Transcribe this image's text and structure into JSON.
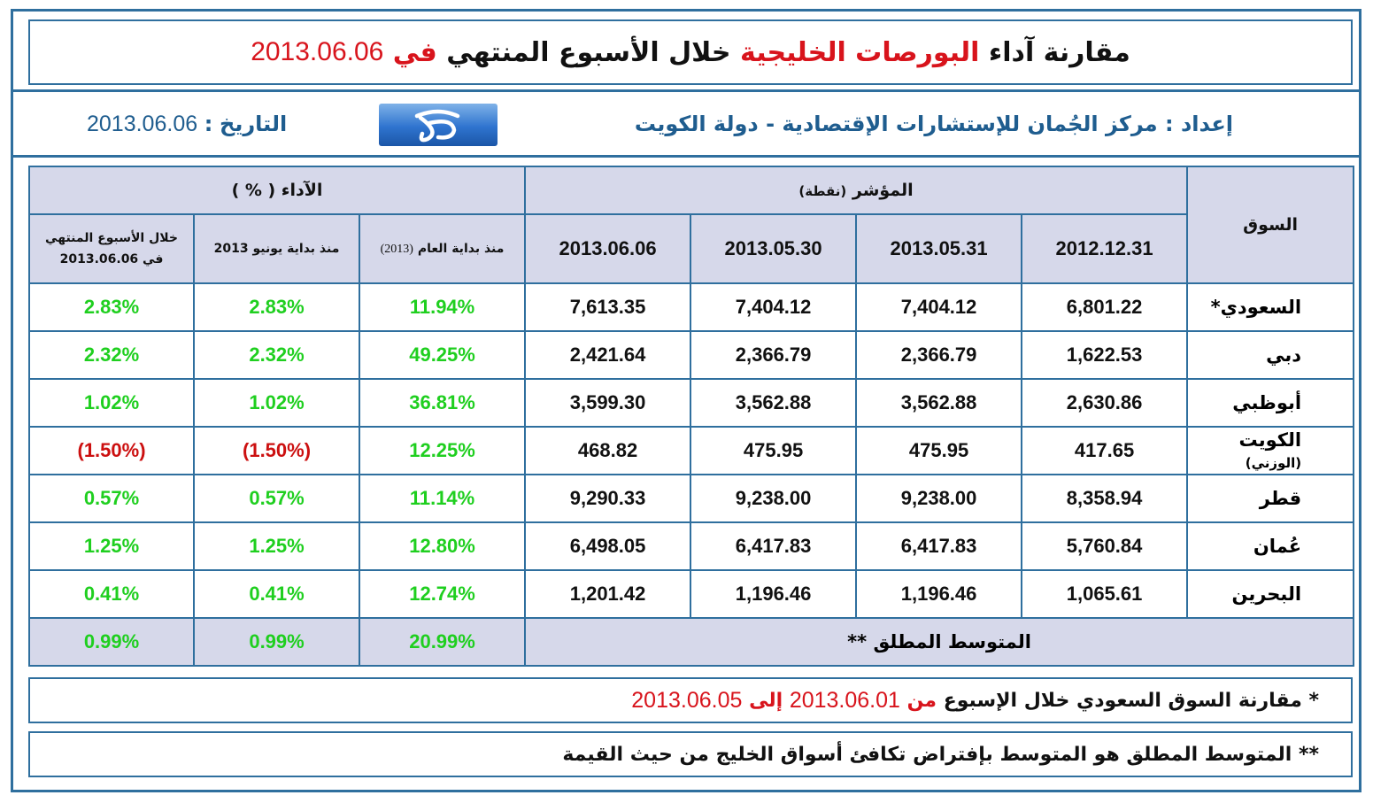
{
  "title": {
    "part1": "مقارنة آداء",
    "part2": "البورصات الخليجية",
    "part3": "خلال الأسبوع المنتهي",
    "part4": "في",
    "date": "2013.06.06"
  },
  "info": {
    "prepared_label": "إعداد",
    "prepared_sep": ":",
    "prepared_value": "مركز الجُمان للإستشارات الإقتصادية - دولة الكويت",
    "date_label": "التاريخ",
    "date_sep": ":",
    "date_value": "2013.06.06"
  },
  "table": {
    "market_header": "السوق",
    "index_header": "المؤشر",
    "index_unit": "(نقطة)",
    "perf_header": "الآداء ( % )",
    "date_cols": [
      "2012.12.31",
      "2013.05.31",
      "2013.05.30",
      "2013.06.06"
    ],
    "perf_cols": {
      "ytd": "منذ بداية العام",
      "ytd_year": "(2013)",
      "june": "منذ بداية يونيو 2013",
      "week_line1": "خلال الأسبوع المنتهي",
      "week_line2": "في 2013.06.06"
    },
    "rows": [
      {
        "market": "السعودي*",
        "m_suffix": "",
        "d1": "6,801.22",
        "d2": "7,404.12",
        "d3": "7,404.12",
        "d4": "7,613.35",
        "ytd": "11.94%",
        "june": "2.83%",
        "week": "2.83%",
        "neg": false
      },
      {
        "market": "دبي",
        "m_suffix": "",
        "d1": "1,622.53",
        "d2": "2,366.79",
        "d3": "2,366.79",
        "d4": "2,421.64",
        "ytd": "49.25%",
        "june": "2.32%",
        "week": "2.32%",
        "neg": false
      },
      {
        "market": "أبوظبي",
        "m_suffix": "",
        "d1": "2,630.86",
        "d2": "3,562.88",
        "d3": "3,562.88",
        "d4": "3,599.30",
        "ytd": "36.81%",
        "june": "1.02%",
        "week": "1.02%",
        "neg": false
      },
      {
        "market": "الكويت",
        "m_suffix": "(الوزني)",
        "d1": "417.65",
        "d2": "475.95",
        "d3": "475.95",
        "d4": "468.82",
        "ytd": "12.25%",
        "june": "(1.50%)",
        "week": "(1.50%)",
        "neg": true
      },
      {
        "market": "قطر",
        "m_suffix": "",
        "d1": "8,358.94",
        "d2": "9,238.00",
        "d3": "9,238.00",
        "d4": "9,290.33",
        "ytd": "11.14%",
        "june": "0.57%",
        "week": "0.57%",
        "neg": false
      },
      {
        "market": "عُمان",
        "m_suffix": "",
        "d1": "5,760.84",
        "d2": "6,417.83",
        "d3": "6,417.83",
        "d4": "6,498.05",
        "ytd": "12.80%",
        "june": "1.25%",
        "week": "1.25%",
        "neg": false
      },
      {
        "market": "البحرين",
        "m_suffix": "",
        "d1": "1,065.61",
        "d2": "1,196.46",
        "d3": "1,196.46",
        "d4": "1,201.42",
        "ytd": "12.74%",
        "june": "0.41%",
        "week": "0.41%",
        "neg": false
      }
    ],
    "average": {
      "label": "المتوسط المطلق **",
      "ytd": "20.99%",
      "june": "0.99%",
      "week": "0.99%"
    }
  },
  "notes": {
    "n1_prefix": "*  مقارنة السوق السعودي خلال الإسبوع",
    "n1_from": "من",
    "n1_date1": "2013.06.01",
    "n1_to": "إلى",
    "n1_date2": "2013.06.05",
    "n2": "** المتوسط المطلق هو المتوسط بإفتراض تكافئ أسواق الخليج من حيث القيمة"
  },
  "colors": {
    "border": "#2f6f9e",
    "header_bg": "#d6d8ea",
    "positive": "#1fcf1f",
    "negative": "#cc1010",
    "accent_red": "#d8141c",
    "accent_blue": "#1f5d8f"
  },
  "logo": {
    "icon": "aljuman-logo"
  }
}
